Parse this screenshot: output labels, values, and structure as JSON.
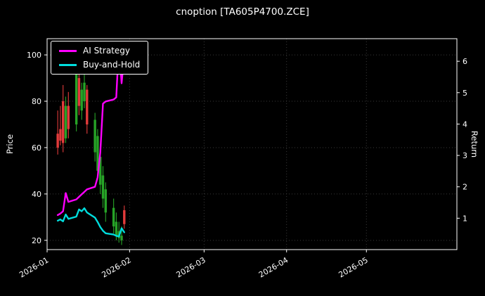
{
  "title": "cnoption [TA605P4700.ZCE]",
  "chart_data": {
    "type": "candlestick_with_lines",
    "title": "cnoption [TA605P4700.ZCE]",
    "x_domain": [
      "2026-01-01",
      "2026-06-04"
    ],
    "x_ticks": [
      {
        "label": "2026-01",
        "date": "2026-01-01"
      },
      {
        "label": "2026-02",
        "date": "2026-02-01"
      },
      {
        "label": "2026-03",
        "date": "2026-03-01"
      },
      {
        "label": "2026-04",
        "date": "2026-04-01"
      },
      {
        "label": "2026-05",
        "date": "2026-05-01"
      }
    ],
    "left_axis": {
      "label": "Price",
      "ticks": [
        20,
        40,
        60,
        80,
        100
      ],
      "range": [
        16,
        107
      ]
    },
    "right_axis": {
      "label": "Return",
      "ticks": [
        1,
        2,
        3,
        4,
        5,
        6
      ],
      "range": [
        0,
        6.72
      ]
    },
    "dates": [
      "2026-01-05",
      "2026-01-06",
      "2026-01-07",
      "2026-01-08",
      "2026-01-09",
      "2026-01-12",
      "2026-01-13",
      "2026-01-14",
      "2026-01-15",
      "2026-01-16",
      "2026-01-19",
      "2026-01-20",
      "2026-01-21",
      "2026-01-22",
      "2026-01-23",
      "2026-01-26",
      "2026-01-27",
      "2026-01-28",
      "2026-01-29",
      "2026-01-30"
    ],
    "candles": {
      "open": [
        66,
        68,
        80,
        64,
        78,
        70,
        90,
        76,
        80,
        85,
        58,
        50,
        44,
        38,
        32,
        26,
        22,
        21,
        20,
        33
      ],
      "high": [
        76,
        78,
        87,
        82,
        84,
        95,
        94,
        88,
        93,
        87,
        75,
        68,
        60,
        52,
        45,
        38,
        32,
        28,
        26,
        35
      ],
      "low": [
        57,
        61,
        58,
        62,
        64,
        67,
        74,
        72,
        77,
        66,
        54,
        46,
        40,
        34,
        28,
        23,
        20,
        19,
        18,
        25
      ],
      "close": [
        60,
        63,
        62,
        78,
        68,
        92,
        78,
        85,
        88,
        70,
        72,
        65,
        56,
        48,
        42,
        34,
        28,
        24,
        22,
        27
      ]
    },
    "series": [
      {
        "name": "AI Strategy",
        "color": "#ff00ff",
        "axis": "right",
        "values": [
          1.1,
          1.15,
          1.22,
          1.8,
          1.52,
          1.6,
          1.68,
          1.76,
          1.84,
          1.92,
          2.0,
          2.3,
          3.1,
          4.65,
          4.72,
          4.78,
          4.85,
          6.55,
          5.3,
          6.2
        ]
      },
      {
        "name": "Buy-and-Hold",
        "color": "#00dddd",
        "axis": "right",
        "values": [
          0.92,
          0.96,
          0.9,
          1.12,
          0.98,
          1.05,
          1.28,
          1.22,
          1.32,
          1.18,
          1.02,
          0.88,
          0.72,
          0.6,
          0.52,
          0.48,
          0.44,
          0.42,
          0.68,
          0.55
        ]
      }
    ],
    "colors": {
      "up": "#27a327",
      "down": "#e33b3b",
      "grid": "#3a3a3a",
      "background": "#000000",
      "text": "#ffffff"
    },
    "legend_position": "upper-left",
    "grid": true
  },
  "legend": {
    "items": [
      {
        "label": "AI Strategy",
        "color": "#ff00ff"
      },
      {
        "label": "Buy-and-Hold",
        "color": "#00dddd"
      }
    ]
  }
}
